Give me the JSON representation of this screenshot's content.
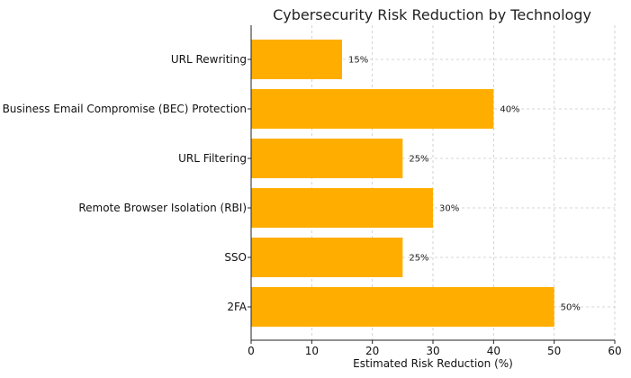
{
  "chart_data": {
    "type": "bar",
    "orientation": "horizontal",
    "title": "Cybersecurity Risk Reduction by Technology",
    "xlabel": "Estimated Risk Reduction (%)",
    "ylabel": "",
    "categories": [
      "URL Rewriting",
      "Business Email Compromise (BEC) Protection",
      "URL Filtering",
      "Remote Browser Isolation (RBI)",
      "SSO",
      "2FA"
    ],
    "values": [
      15,
      40,
      25,
      30,
      25,
      50
    ],
    "data_labels": [
      "15%",
      "40%",
      "25%",
      "30%",
      "25%",
      "50%"
    ],
    "xlim": [
      0,
      60
    ],
    "xticks": [
      0,
      10,
      20,
      30,
      40,
      50,
      60
    ],
    "grid": true,
    "bar_color": "#FFAE00"
  }
}
